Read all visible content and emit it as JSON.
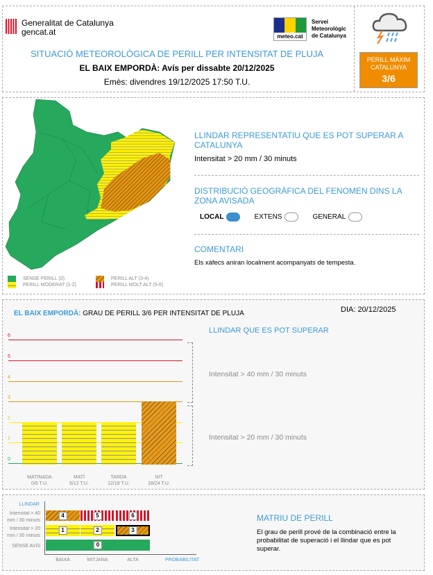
{
  "header": {
    "gov_name": "Generalitat de Catalunya",
    "gov_site": "gencat.at",
    "smc_logo_text": "meteo.cat",
    "smc_name": [
      "Servei",
      "Meteorològic",
      "de Catalunya"
    ],
    "title": "SITUACIÓ METEOROLÒGICA DE PERILL PER INTENSITAT DE PLUJA",
    "subtitle": "EL BAIX EMPORDÀ: Avís per dissabte 20/12/2025",
    "issued": "Emès: divendres 19/12/2025 17:50 T.U.",
    "max_label": "PERILL MÀXIM CATALUNYA",
    "max_value": "3/6",
    "icon": "storm-rain-icon"
  },
  "map": {
    "legend": [
      "SENSE PERILL (0)",
      "PERILL MODERAT (1-2)",
      "PERILL ALT (3-4)",
      "PERILL MOLT ALT (5-6)"
    ],
    "colors": {
      "green": "#26a95d",
      "yellow": "#fff200",
      "orange": "#e8960f",
      "red": "#d81228"
    }
  },
  "info": {
    "threshold_title": "LLINDAR REPRESENTATIU QUE ES POT SUPERAR A CATALUNYA",
    "threshold_value": "Intensitat > 20 mm / 30 minuts",
    "distribution_title": "DISTRIBUCIÓ GEOGRÀFICA DEL FENOMEN DINS LA ZONA AVISADA",
    "options": [
      {
        "label": "LOCAL",
        "selected": true
      },
      {
        "label": "EXTENS",
        "selected": false
      },
      {
        "label": "GENERAL",
        "selected": false
      }
    ],
    "comment_title": "COMENTARI",
    "comment": "Els xàfecs aniran localment acompanyats de tempesta."
  },
  "chart_section": {
    "region": "EL BAIX EMPORDÀ:",
    "title": "GRAU DE PERILL 3/6 PER INTENSITAT DE PLUJA",
    "day": "DIA: 20/12/2025",
    "threshold_title": "LLINDAR QUE ES POT SUPERAR",
    "threshold_high": "Intensitat > 40 mm / 30 minuts",
    "threshold_low": "Intensitat > 20 mm / 30 minuts"
  },
  "chart_data": {
    "type": "bar",
    "categories": [
      "MATINADA",
      "MATÍ",
      "TARDA",
      "NIT"
    ],
    "category_sub": [
      "0/6 T.U.",
      "6/12 T.U.",
      "12/18 T.U.",
      "18/24 T.U."
    ],
    "values": [
      2,
      2,
      2,
      3
    ],
    "yticks": [
      "0",
      "1",
      "2",
      "3",
      "4",
      "5",
      "6"
    ],
    "ylim": [
      0,
      6
    ],
    "level_colors": [
      "#26a95d",
      "#fff200",
      "#fff200",
      "#e8960f",
      "#e8960f",
      "#d81228",
      "#d81228"
    ]
  },
  "matrix": {
    "y_title": "LLINDAR",
    "rows": [
      "Intensitat > 40 mm / 30 minuts",
      "Intensitat > 20 mm / 30 minuts",
      "SENSE AVÍS"
    ],
    "cols": [
      "BAIXA",
      "MITJANA",
      "ALTA"
    ],
    "x_title": "PROBABILITAT",
    "cells": [
      "4",
      "5",
      "6",
      "1",
      "2",
      "3",
      "0"
    ],
    "title": "MATRIU DE PERILL",
    "desc": "El grau de perill prové de la combinació entre la probabilitat de superació i el llindar que es pot superar."
  }
}
